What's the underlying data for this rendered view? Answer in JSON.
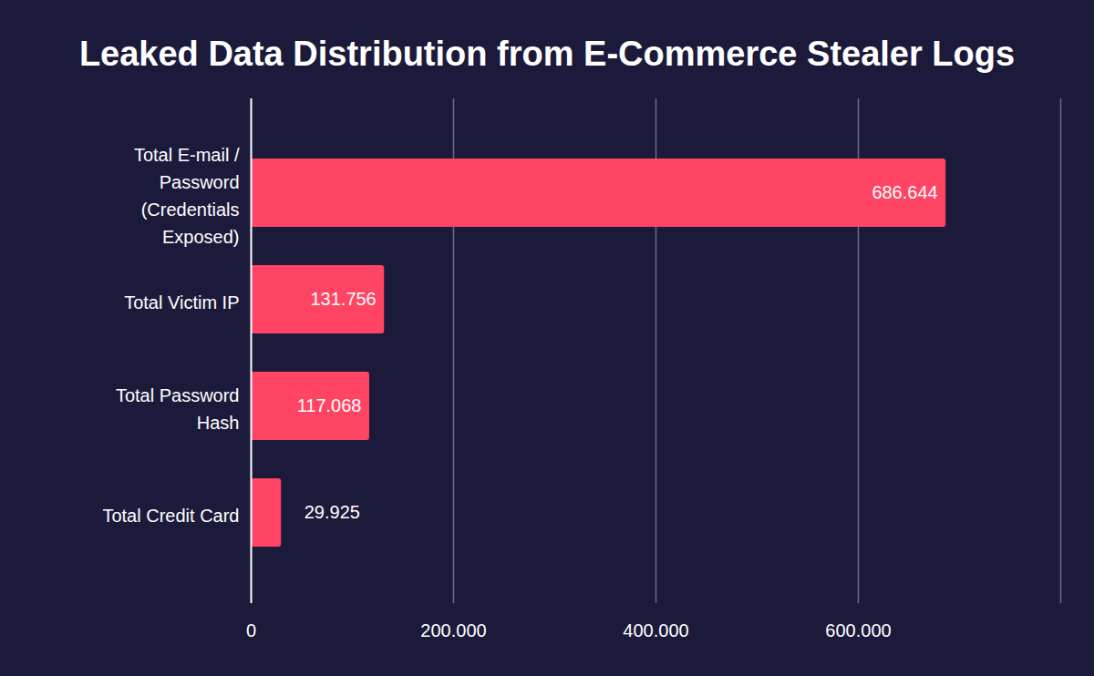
{
  "chart_data": {
    "type": "bar",
    "title": "Leaked Data Distribution from E-Commerce Stealer Logs",
    "orientation": "horizontal",
    "categories": [
      "Total E-mail / Password (Credentials Exposed)",
      "Total Victim IP",
      "Total Password Hash",
      "Total Credit Card"
    ],
    "values": [
      686644,
      131756,
      117068,
      29925
    ],
    "value_labels": [
      "686.644",
      "131.756",
      "117.068",
      "29.925"
    ],
    "color": "#ff4563",
    "xlim": [
      0,
      800000
    ],
    "xticks": [
      0,
      {
        "value": 200000,
        "label": "200.000"
      },
      {
        "value": 400000,
        "label": "400.000"
      },
      {
        "value": 600000,
        "label": "600.000"
      }
    ],
    "grid": true,
    "data_labels": true
  }
}
